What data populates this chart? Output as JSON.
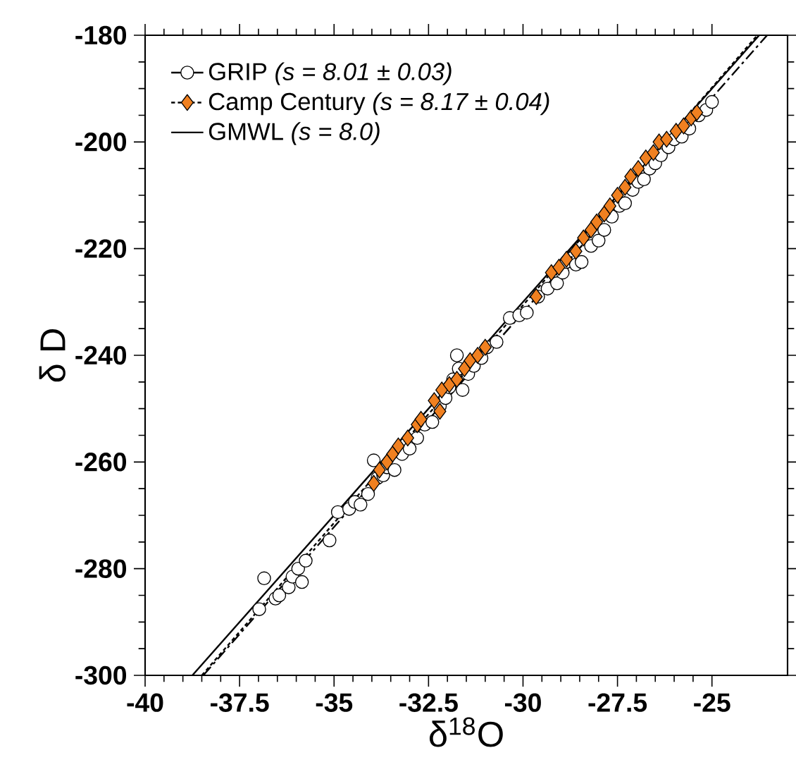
{
  "chart_data": {
    "type": "scatter",
    "xlabel": "δ$^{18}$O",
    "ylabel": "δ D",
    "xlim": [
      -40,
      -23
    ],
    "ylim": [
      -300,
      -180
    ],
    "xticks": [
      -40,
      -37.5,
      -35,
      -32.5,
      -30,
      -27.5,
      -25
    ],
    "yticks": [
      -300,
      -280,
      -260,
      -240,
      -220,
      -200,
      -180
    ],
    "legend": "top left",
    "series": [
      {
        "name": "GRIP *(s = 8.01 ± 0.03)*",
        "marker": "circle",
        "color": "#000000",
        "x": [
          -36.98,
          -36.85,
          -36.55,
          -36.45,
          -36.2,
          -36.1,
          -35.95,
          -35.85,
          -35.75,
          -35.12,
          -34.9,
          -34.6,
          -34.45,
          -34.3,
          -34.1,
          -33.95,
          -33.85,
          -33.7,
          -33.6,
          -33.4,
          -33.2,
          -33.0,
          -32.8,
          -32.6,
          -32.4,
          -32.2,
          -32.05,
          -31.95,
          -31.85,
          -31.75,
          -31.7,
          -31.6,
          -31.45,
          -31.3,
          -31.1,
          -30.95,
          -30.7,
          -30.35,
          -30.1,
          -29.9,
          -29.6,
          -29.35,
          -29.1,
          -28.95,
          -28.85,
          -28.6,
          -28.45,
          -28.2,
          -28.0,
          -27.85,
          -27.65,
          -27.45,
          -27.3,
          -27.1,
          -26.95,
          -26.8,
          -26.65,
          -26.5,
          -26.35,
          -26.15,
          -26.0,
          -25.8,
          -25.6,
          -25.35,
          -25.15,
          -25.0
        ],
        "values": [
          -287.6,
          -281.8,
          -285.6,
          -285.0,
          -283.5,
          -281.5,
          -280.0,
          -282.5,
          -278.5,
          -274.7,
          -269.4,
          -268.8,
          -267.5,
          -268.0,
          -266.0,
          -259.7,
          -263.0,
          -262.5,
          -261.0,
          -261.5,
          -258.5,
          -257.5,
          -255.5,
          -253.0,
          -252.5,
          -249.5,
          -248.0,
          -246.0,
          -244.5,
          -240.0,
          -242.5,
          -246.5,
          -243.5,
          -242.0,
          -240.5,
          -238.5,
          -237.5,
          -233.0,
          -232.5,
          -232.0,
          -229.0,
          -227.5,
          -226.5,
          -224.5,
          -222.5,
          -223.0,
          -222.5,
          -219.5,
          -218.5,
          -216.5,
          -214.0,
          -212.0,
          -211.5,
          -209.0,
          -207.5,
          -207.0,
          -205.0,
          -204.0,
          -202.5,
          -201.0,
          -199.5,
          -199.0,
          -197.5,
          -195.0,
          -194.0,
          -192.5
        ]
      },
      {
        "type": "line",
        "line_style": "dashed",
        "color": "#000000",
        "x": [
          -38.46,
          -23.54
        ],
        "values": [
          -300,
          -180
        ]
      },
      {
        "name": "Camp Century *(s = 8.17 ± 0.04)*",
        "marker": "diamond",
        "color": "#f08020",
        "x": [
          -33.95,
          -33.8,
          -33.6,
          -33.45,
          -33.3,
          -33.05,
          -32.8,
          -32.7,
          -32.2,
          -32.35,
          -32.15,
          -31.95,
          -31.75,
          -31.55,
          -31.4,
          -31.2,
          -31.0,
          -29.65,
          -29.25,
          -29.05,
          -28.85,
          -28.6,
          -28.4,
          -28.2,
          -28.05,
          -27.85,
          -27.7,
          -27.5,
          -27.3,
          -27.15,
          -26.95,
          -26.75,
          -26.55,
          -26.4,
          -26.2,
          -25.95,
          -25.75,
          -25.55,
          -25.4
        ],
        "values": [
          -264.0,
          -261.5,
          -260.0,
          -258.5,
          -257.0,
          -255.5,
          -253.0,
          -252.0,
          -250.5,
          -248.5,
          -246.5,
          -245.5,
          -244.5,
          -242.5,
          -241.0,
          -240.0,
          -238.5,
          -229.0,
          -224.5,
          -223.5,
          -222.0,
          -220.5,
          -218.0,
          -216.5,
          -215.0,
          -213.5,
          -212.0,
          -210.0,
          -208.5,
          -206.5,
          -205.0,
          -203.0,
          -202.0,
          -200.0,
          -199.5,
          -198.0,
          -197.0,
          -195.5,
          -194.5
        ]
      },
      {
        "type": "line",
        "line_style": "dotted",
        "color": "#000000",
        "x": [
          -38.5,
          -23.8
        ],
        "values": [
          -300,
          -180
        ]
      },
      {
        "name": "GMWL *(s = 8.0)*",
        "type": "line",
        "line_style": "solid",
        "color": "#000000",
        "x": [
          -38.75,
          -23.75
        ],
        "values": [
          -300,
          -180
        ]
      }
    ]
  }
}
